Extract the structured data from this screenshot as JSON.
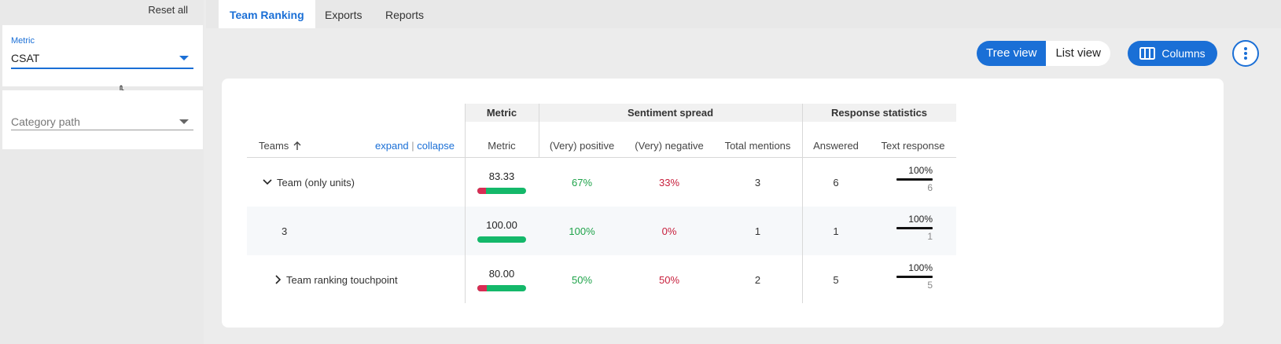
{
  "sidebar": {
    "reset_all": "Reset all",
    "metric": {
      "label": "Metric",
      "value": "CSAT"
    },
    "category": {
      "placeholder": "Category path"
    }
  },
  "tabs": [
    "Team Ranking",
    "Exports",
    "Reports"
  ],
  "toolbar": {
    "tree_view": "Tree view",
    "list_view": "List view",
    "columns": "Columns"
  },
  "table": {
    "group_headers": {
      "metric": "Metric",
      "sentiment": "Sentiment spread",
      "response": "Response statistics"
    },
    "columns": {
      "teams": "Teams",
      "expand": "expand",
      "separator": "|",
      "collapse": "collapse",
      "metric": "Metric",
      "positive": "(Very) positive",
      "negative": "(Very) negative",
      "total": "Total mentions",
      "answered": "Answered",
      "text_response": "Text response"
    },
    "rows": [
      {
        "name": "Team (only units)",
        "metric": "83.33",
        "metric_negative_share": 0.17,
        "positive": "67%",
        "negative": "33%",
        "total": "3",
        "answered": "6",
        "text_pct": "100%",
        "text_count": "6"
      },
      {
        "name": "3",
        "metric": "100.00",
        "metric_negative_share": 0.0,
        "positive": "100%",
        "negative": "0%",
        "total": "1",
        "answered": "1",
        "text_pct": "100%",
        "text_count": "1"
      },
      {
        "name": "Team ranking touchpoint",
        "metric": "80.00",
        "metric_negative_share": 0.2,
        "positive": "50%",
        "negative": "50%",
        "total": "2",
        "answered": "5",
        "text_pct": "100%",
        "text_count": "5"
      }
    ]
  },
  "colors": {
    "accent": "#1a6fd6",
    "positive": "#1fa34a",
    "negative": "#c8203d",
    "bar_positive": "#14b86a",
    "bar_negative": "#d92c54"
  }
}
